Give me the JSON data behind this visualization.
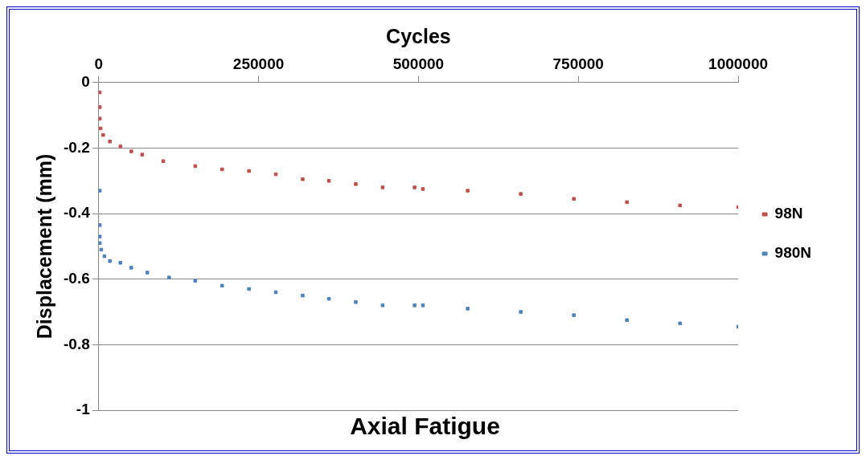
{
  "chart_data": {
    "type": "scatter",
    "title": "Axial Fatigue",
    "xlabel": "Cycles",
    "ylabel": "Displacement (mm)",
    "xlim": [
      0,
      1000000
    ],
    "xticks": [
      0,
      250000,
      500000,
      750000,
      1000000
    ],
    "ylim": [
      -1,
      0
    ],
    "yticks": [
      0,
      -0.2,
      -0.4,
      -0.6,
      -0.8,
      -1
    ],
    "grid": "y",
    "legend": "right",
    "marker": "square",
    "series": [
      {
        "name": "98N",
        "color": "#c0504d",
        "x": [
          1700,
          1700,
          1700,
          3000,
          7000,
          17500,
          34000,
          51000,
          68000,
          101000,
          151000,
          193000,
          235000,
          277000,
          319000,
          360000,
          402000,
          444000,
          494000,
          507000,
          577000,
          660000,
          743000,
          826000,
          909000,
          1000000
        ],
        "values": [
          -0.03,
          -0.075,
          -0.11,
          -0.14,
          -0.16,
          -0.18,
          -0.195,
          -0.21,
          -0.22,
          -0.24,
          -0.255,
          -0.265,
          -0.27,
          -0.28,
          -0.295,
          -0.3,
          -0.31,
          -0.32,
          -0.32,
          -0.325,
          -0.33,
          -0.34,
          -0.355,
          -0.365,
          -0.375,
          -0.38
        ]
      },
      {
        "name": "980N",
        "color": "#4f81bd",
        "x": [
          1700,
          1700,
          1700,
          1700,
          4000,
          9000,
          17500,
          34000,
          51000,
          76000,
          110000,
          151000,
          193000,
          235000,
          277000,
          319000,
          360000,
          402000,
          444000,
          494000,
          507000,
          577000,
          660000,
          743000,
          826000,
          909000,
          1000000
        ],
        "values": [
          -0.33,
          -0.435,
          -0.47,
          -0.49,
          -0.51,
          -0.53,
          -0.545,
          -0.55,
          -0.565,
          -0.58,
          -0.595,
          -0.605,
          -0.62,
          -0.63,
          -0.64,
          -0.65,
          -0.66,
          -0.67,
          -0.68,
          -0.68,
          -0.68,
          -0.69,
          -0.7,
          -0.71,
          -0.725,
          -0.735,
          -0.745
        ]
      }
    ]
  }
}
